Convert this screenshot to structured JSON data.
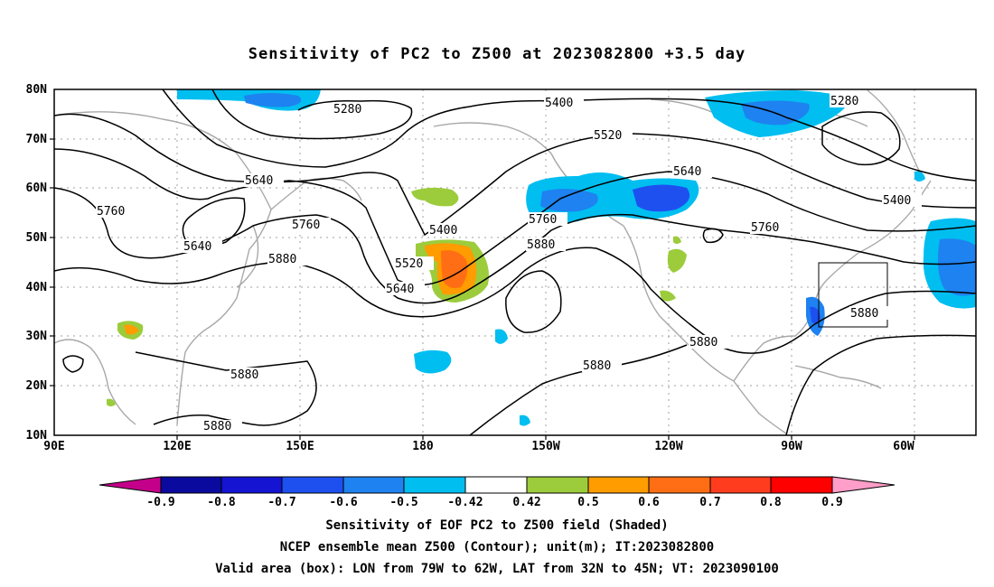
{
  "title": "Sensitivity of PC2 to Z500 at 2023082800 +3.5 day",
  "map": {
    "lon_labels": [
      "90E",
      "120E",
      "150E",
      "180",
      "150W",
      "120W",
      "90W",
      "60W"
    ],
    "lat_labels": [
      "10N",
      "20N",
      "30N",
      "40N",
      "50N",
      "60N",
      "70N",
      "80N"
    ],
    "lon_range_deg_east": [
      90,
      315
    ],
    "lat_range_deg": [
      10,
      80
    ],
    "contour_labels": [
      "5280",
      "5400",
      "5520",
      "5640",
      "5280",
      "5760",
      "5640",
      "5760",
      "5880",
      "5400",
      "5520",
      "5640",
      "5760",
      "5880",
      "5640",
      "5760",
      "5400",
      "5880",
      "5880",
      "5880",
      "5880"
    ],
    "validation_box": {
      "lon_w": -79,
      "lon_e": -62,
      "lat_s": 32,
      "lat_n": 45
    }
  },
  "colorbar": {
    "labels": [
      "-0.9",
      "-0.8",
      "-0.7",
      "-0.6",
      "-0.5",
      "-0.42",
      "0.42",
      "0.5",
      "0.6",
      "0.7",
      "0.8",
      "0.9"
    ],
    "colors": [
      "#c4008a",
      "#0a0a9e",
      "#1414d2",
      "#1e50f0",
      "#1e82f0",
      "#00bef0",
      "#ffffff",
      "#9ccc3c",
      "#ff9c00",
      "#ff6e14",
      "#ff3c1e",
      "#ff0000",
      "#ff9ec8"
    ]
  },
  "caption": {
    "line1": "Sensitivity of EOF PC2 to Z500 field (Shaded)",
    "line2": "NCEP ensemble mean Z500 (Contour); unit(m); IT:2023082800",
    "line3": "Valid area (box): LON from 79W to 62W, LAT from 32N to 45N; VT: 2023090100"
  },
  "colors": {
    "coast": "#a8a8a8",
    "contour": "#000000",
    "grid": "#a0a0a0"
  }
}
